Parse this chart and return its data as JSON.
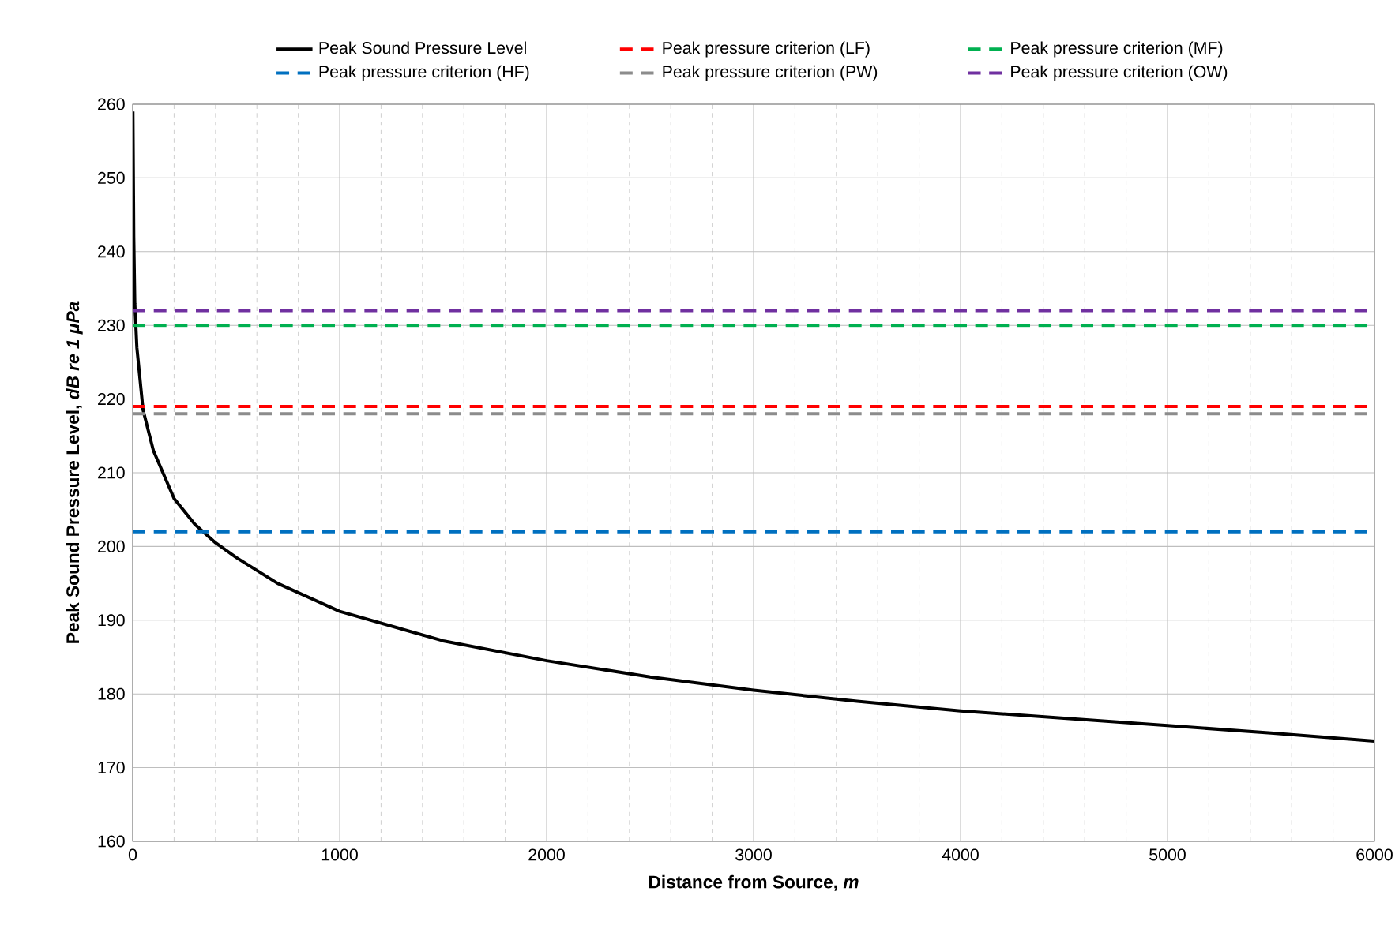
{
  "chart_data": {
    "type": "line",
    "xlabel": "Distance from Source, *m*",
    "ylabel": "Peak Sound Pressure Level, *dB re 1 μPa*",
    "xlim": [
      0,
      6000
    ],
    "xticks": [
      0,
      1000,
      2000,
      3000,
      4000,
      5000,
      6000
    ],
    "ylim": [
      160,
      260
    ],
    "yticks": [
      160,
      170,
      180,
      190,
      200,
      210,
      220,
      230,
      240,
      250,
      260
    ],
    "grid": true,
    "legend": "top",
    "marker": "none",
    "series": [
      {
        "name": "Peak Sound Pressure Level",
        "color": "#000000",
        "line_style": "solid",
        "x": [
          1,
          5,
          10,
          20,
          50,
          100,
          200,
          300,
          400,
          500,
          700,
          1000,
          1500,
          2000,
          2500,
          3000,
          3500,
          4000,
          4500,
          5000,
          5500,
          6000
        ],
        "values": [
          259,
          242,
          233,
          227,
          218.5,
          213,
          206.5,
          203,
          200.5,
          198.5,
          195,
          191.2,
          187.2,
          184.5,
          182.3,
          180.5,
          179,
          177.7,
          176.7,
          175.7,
          174.7,
          173.6
        ]
      },
      {
        "name": "Peak pressure criterion (LF)",
        "color": "#ff0000",
        "line_style": "dashed",
        "x": [
          0,
          6000
        ],
        "values": [
          219,
          219
        ]
      },
      {
        "name": "Peak pressure criterion (MF)",
        "color": "#00b050",
        "line_style": "dashed",
        "x": [
          0,
          6000
        ],
        "values": [
          230,
          230
        ]
      },
      {
        "name": "Peak pressure criterion (HF)",
        "color": "#0070c0",
        "line_style": "dashed",
        "x": [
          0,
          6000
        ],
        "values": [
          202,
          202
        ]
      },
      {
        "name": "Peak pressure criterion (PW)",
        "color": "#8c8c8c",
        "line_style": "dashed",
        "x": [
          0,
          6000
        ],
        "values": [
          218,
          218
        ]
      },
      {
        "name": "Peak pressure criterion (OW)",
        "color": "#7030a0",
        "line_style": "dashed",
        "x": [
          0,
          6000
        ],
        "values": [
          232,
          232
        ]
      }
    ]
  }
}
